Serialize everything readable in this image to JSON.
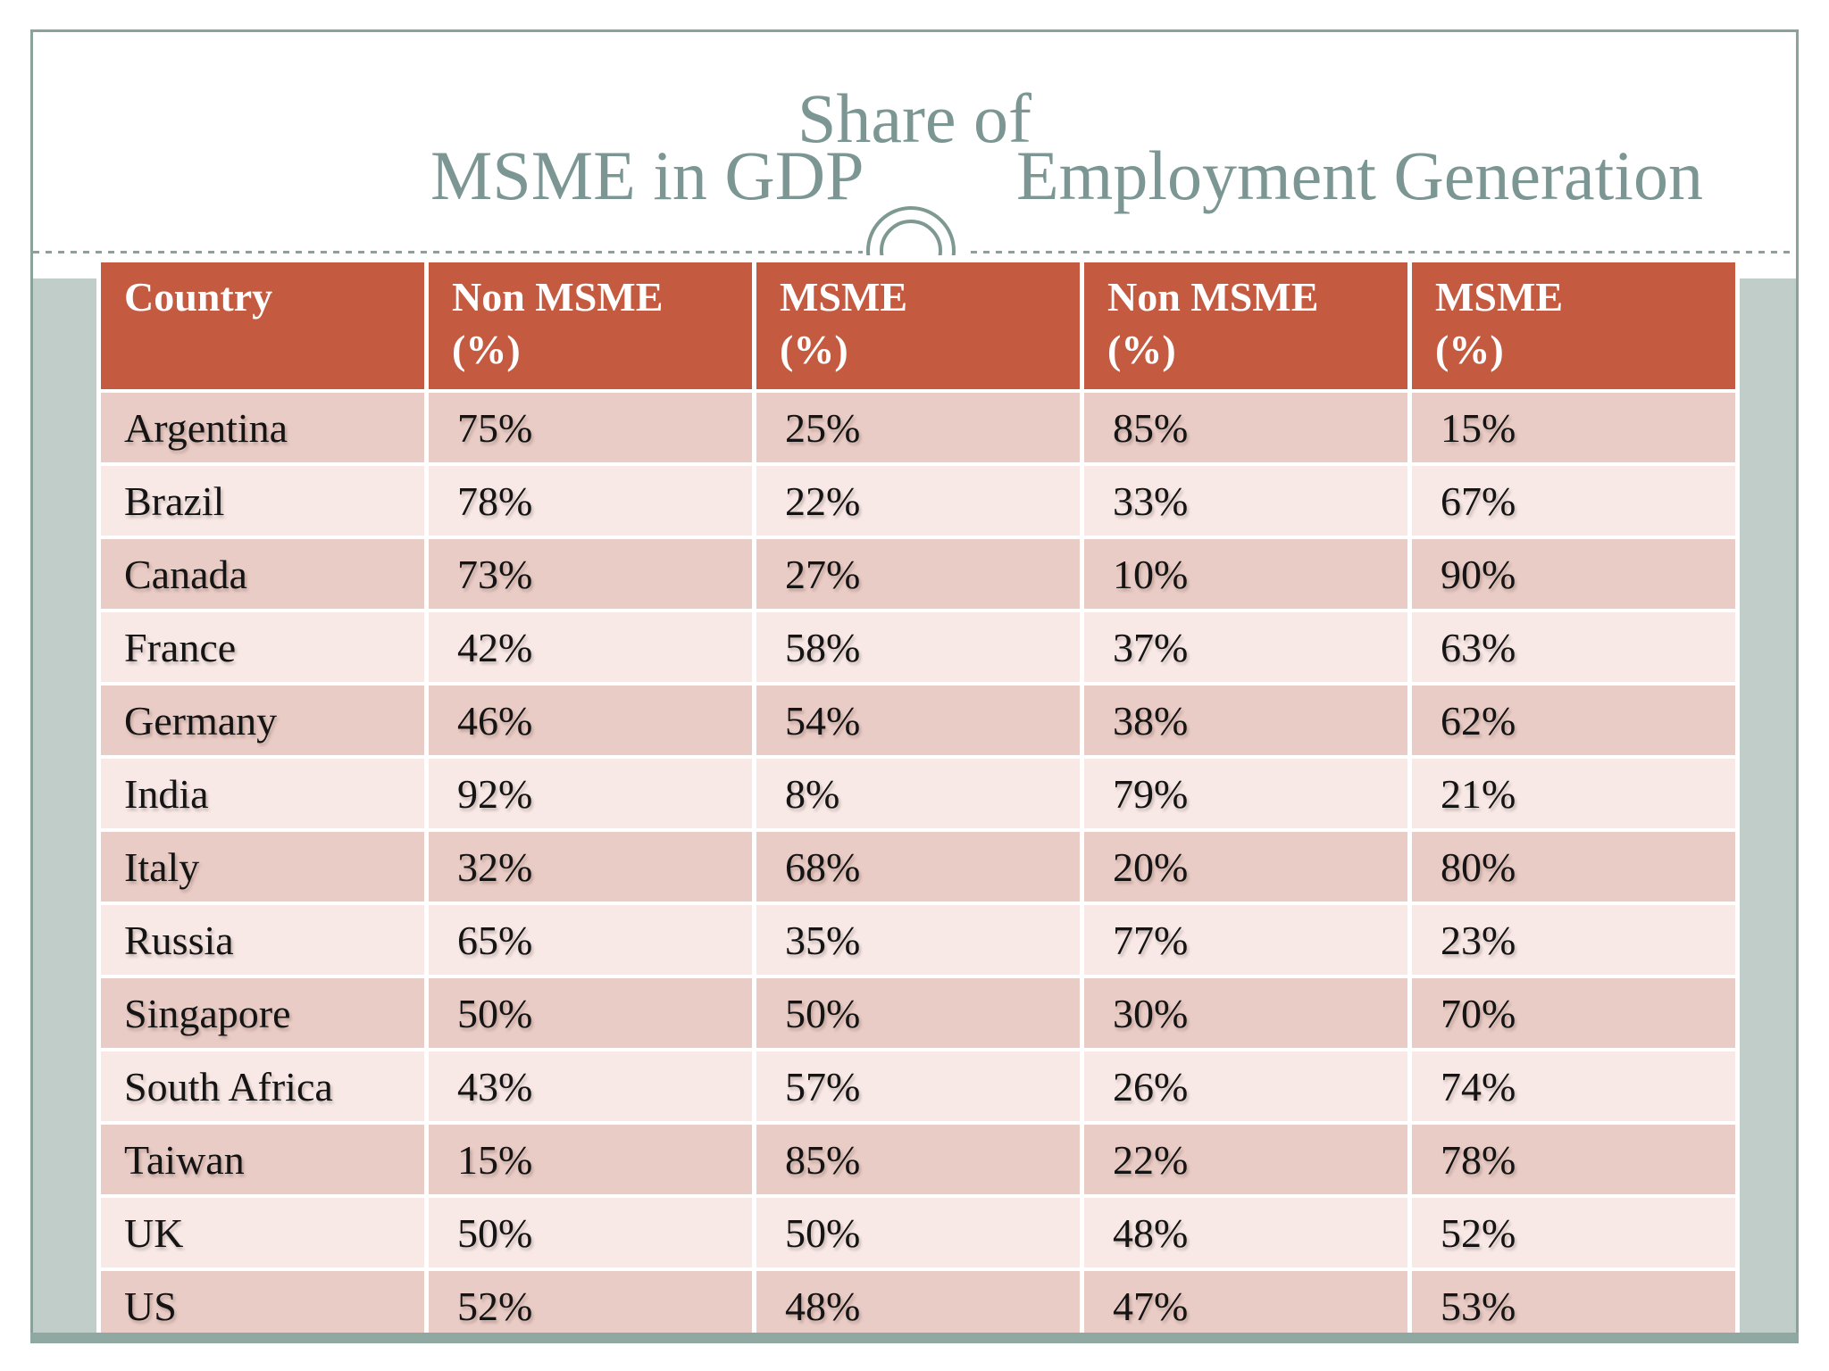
{
  "title": {
    "line1": "Share of",
    "left": "MSME in GDP",
    "right": "Employment Generation"
  },
  "table": {
    "headers": [
      {
        "line1": "Country",
        "line2": ""
      },
      {
        "line1": "Non MSME",
        "line2": "(%)"
      },
      {
        "line1": "MSME",
        "line2": "(%)"
      },
      {
        "line1": "Non MSME",
        "line2": "(%)"
      },
      {
        "line1": "MSME",
        "line2": "(%)"
      }
    ],
    "rows": [
      [
        "Argentina",
        "75%",
        "25%",
        "85%",
        "15%"
      ],
      [
        "Brazil",
        "78%",
        "22%",
        "33%",
        "67%"
      ],
      [
        "Canada",
        "73%",
        "27%",
        "10%",
        "90%"
      ],
      [
        "France",
        "42%",
        "58%",
        "37%",
        "63%"
      ],
      [
        "Germany",
        "46%",
        "54%",
        "38%",
        "62%"
      ],
      [
        "India",
        "92%",
        "8%",
        "79%",
        "21%"
      ],
      [
        "Italy",
        "32%",
        "68%",
        "20%",
        "80%"
      ],
      [
        "Russia",
        "65%",
        "35%",
        "77%",
        "23%"
      ],
      [
        "Singapore",
        "50%",
        "50%",
        "30%",
        "70%"
      ],
      [
        "South Africa",
        "43%",
        "57%",
        "26%",
        "74%"
      ],
      [
        "Taiwan",
        "15%",
        "85%",
        "22%",
        "78%"
      ],
      [
        "UK",
        "50%",
        "50%",
        "48%",
        "52%"
      ],
      [
        "US",
        "52%",
        "48%",
        "47%",
        "53%"
      ]
    ]
  },
  "colors": {
    "header_bg": "#C45A40",
    "row_odd_bg": "#EACCC6",
    "row_even_bg": "#F8E9E7",
    "frame_teal": "#8AA29C",
    "title_text": "#7C9793",
    "sage_band": "#C1CDC9",
    "sage_strip": "#8FA8A2",
    "cell_gap": "#FFFFFF"
  }
}
